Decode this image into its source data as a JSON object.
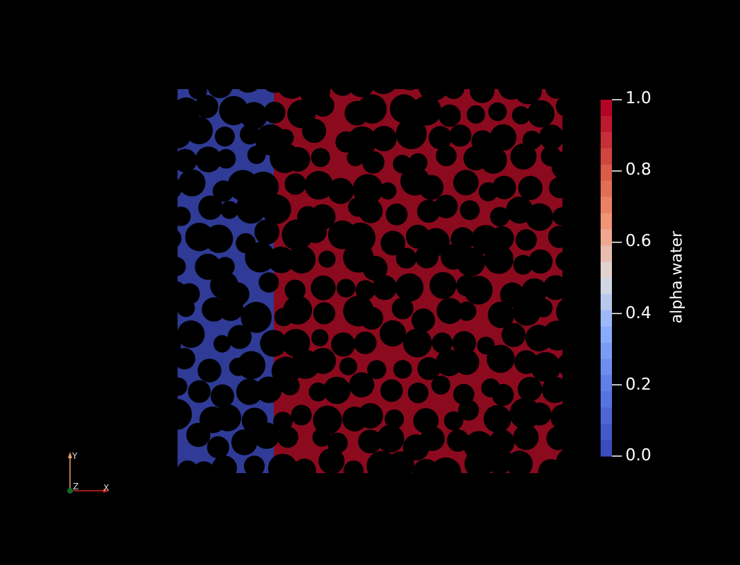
{
  "scalar_bar": {
    "title": "alpha.water",
    "ticks": [
      "1.0",
      "0.8",
      "0.6",
      "0.4",
      "0.2",
      "0.0"
    ],
    "tick_values": [
      1.0,
      0.8,
      0.6,
      0.4,
      0.2,
      0.0
    ],
    "colors": {
      "high": "#b40426",
      "mid": "#dddddd",
      "low": "#3b4cc0"
    }
  },
  "field": {
    "water_color": "#8c0a1e",
    "air_color": "#2f3b96",
    "grain_color": "#000000",
    "interface_fraction": 0.25
  },
  "orientation_axes": {
    "y_label": "Y",
    "z_label": "Z",
    "x_label": "X",
    "colors": {
      "x": "#d42020",
      "y": "#e8a060",
      "z": "#0e6b2a"
    }
  }
}
